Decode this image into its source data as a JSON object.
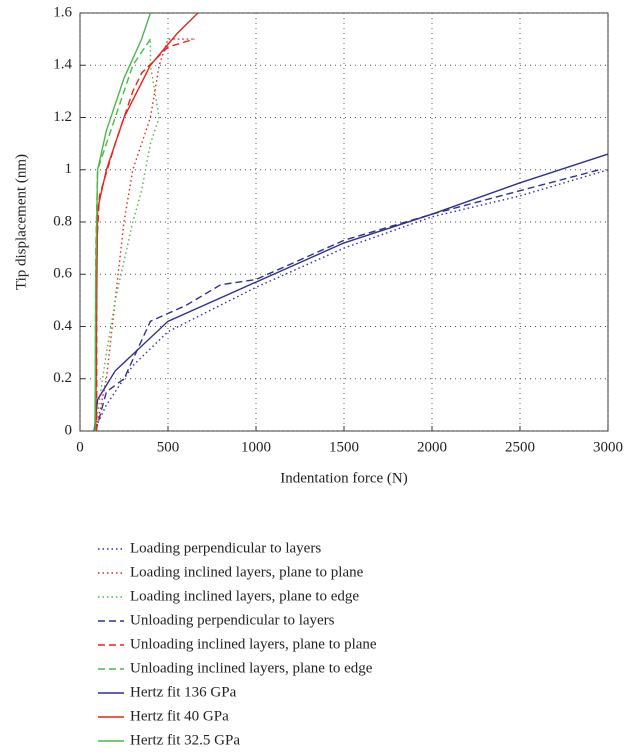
{
  "chart_data": {
    "type": "line",
    "xlabel": "Indentation force (N)",
    "ylabel": "Tip displacement (nm)",
    "xlim": [
      0,
      3000
    ],
    "xticks": [
      0,
      500,
      1000,
      1500,
      2000,
      2500,
      3000
    ],
    "ylim": [
      0,
      1.6
    ],
    "yticks": [
      0,
      0.2,
      0.4,
      0.6,
      0.8,
      1,
      1.2,
      1.4,
      1.6
    ],
    "grid": true,
    "legend": "below",
    "series": [
      {
        "name": "Loading perpendicular to layers",
        "color": "#2e3192",
        "style": "dotted",
        "x": [
          80,
          150,
          300,
          500,
          1000,
          1500,
          2000,
          2500,
          2900,
          3000
        ],
        "values": [
          0,
          0.1,
          0.25,
          0.38,
          0.55,
          0.7,
          0.82,
          0.9,
          0.98,
          1.0
        ]
      },
      {
        "name": "Loading inclined layers, plane to plane",
        "color": "#e8241b",
        "style": "dotted",
        "x": [
          90,
          150,
          200,
          250,
          300,
          400,
          450,
          500,
          600,
          650
        ],
        "values": [
          0,
          0.2,
          0.5,
          0.8,
          1.0,
          1.2,
          1.4,
          1.5,
          1.5,
          1.5
        ]
      },
      {
        "name": "Loading inclined layers, plane to edge",
        "color": "#4db848",
        "style": "dotted",
        "x": [
          85,
          150,
          200,
          300,
          350,
          400,
          450,
          400,
          400
        ],
        "values": [
          0,
          0.3,
          0.5,
          0.8,
          0.92,
          1.1,
          1.2,
          1.4,
          1.5
        ]
      },
      {
        "name": "Unloading perpendicular to layers",
        "color": "#2e3192",
        "style": "dashed",
        "x": [
          90,
          150,
          250,
          400,
          600,
          800,
          1000,
          1500,
          2000,
          2500,
          2950
        ],
        "values": [
          0,
          0.15,
          0.2,
          0.42,
          0.48,
          0.56,
          0.58,
          0.73,
          0.83,
          0.92,
          1.0
        ]
      },
      {
        "name": "Unloading inclined layers, plane to plane",
        "color": "#e8241b",
        "style": "dashed",
        "x": [
          95,
          95,
          110,
          200,
          300,
          350,
          500,
          650
        ],
        "values": [
          0,
          0.7,
          0.9,
          1.1,
          1.3,
          1.37,
          1.47,
          1.5
        ]
      },
      {
        "name": "Unloading inclined layers, plane to edge",
        "color": "#4db848",
        "style": "dashed",
        "x": [
          85,
          90,
          100,
          200,
          300,
          400
        ],
        "values": [
          0,
          0.7,
          1.0,
          1.2,
          1.4,
          1.5
        ]
      },
      {
        "name": "Hertz fit 136 GPa",
        "color": "#2e3192",
        "style": "solid",
        "x": [
          80,
          100,
          200,
          500,
          1000,
          1500,
          2000,
          2500,
          3000
        ],
        "values": [
          0,
          0.12,
          0.23,
          0.42,
          0.57,
          0.72,
          0.83,
          0.95,
          1.06
        ]
      },
      {
        "name": "Hertz fit 40 GPa",
        "color": "#e8241b",
        "style": "solid",
        "x": [
          90,
          95,
          100,
          150,
          250,
          400,
          550,
          670
        ],
        "values": [
          0,
          0.5,
          0.85,
          1.0,
          1.2,
          1.4,
          1.52,
          1.6
        ]
      },
      {
        "name": "Hertz fit 32.5 GPa",
        "color": "#4db848",
        "style": "solid",
        "x": [
          85,
          90,
          100,
          150,
          250,
          350,
          400
        ],
        "values": [
          0,
          0.6,
          1.0,
          1.15,
          1.35,
          1.5,
          1.6
        ]
      }
    ]
  }
}
